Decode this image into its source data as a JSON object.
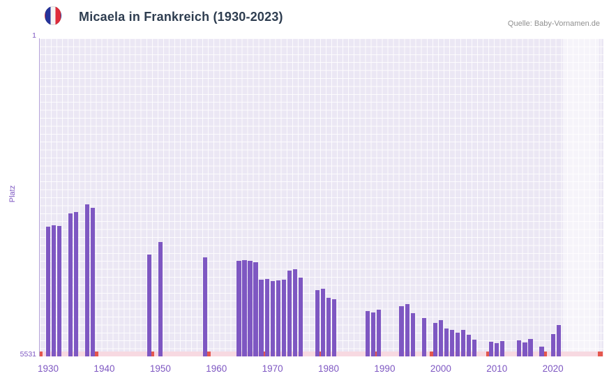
{
  "header": {
    "title": "Micaela in Frankreich (1930-2023)",
    "source": "Quelle: Baby-Vornamen.de",
    "flag_icon": "france-flag-icon"
  },
  "colors": {
    "bar": "#7e57c2",
    "plot-bg": "#ebe7f4",
    "grid": "rgba(255,255,255,0.85)",
    "axis-text": "#7e57c2",
    "title-text": "#2e3d50",
    "source-text": "#8f8f8f",
    "strip": "#f7d9e1",
    "marker": "#e4574e",
    "highlight": "rgba(255,255,255,0.55)",
    "flag-blue": "#26339b",
    "flag-white": "#f5f5f5",
    "flag-red": "#de2c3b"
  },
  "chart_data": {
    "type": "bar",
    "title": "Micaela in Frankreich (1930-2023)",
    "xlabel": "",
    "ylabel": "Platz",
    "y_axis": {
      "top_label": "1",
      "bottom_label": "5531",
      "min": 1,
      "max": 5531,
      "inverted": true
    },
    "x_domain": [
      1928.5,
      2029
    ],
    "x_ticks": [
      1930,
      1940,
      1950,
      1960,
      1970,
      1980,
      1990,
      2000,
      2010,
      2020
    ],
    "highlight_band": {
      "from": 2021.8,
      "to": 2028.2
    },
    "baseline_markers": [
      1928.5,
      1938.5,
      1948.5,
      1958.5,
      1968.5,
      1978.5,
      1988.5,
      1998.5,
      2008.5,
      2018.5,
      2028.5
    ],
    "grid": true,
    "legend": "none",
    "series": [
      {
        "name": "Platz",
        "points": [
          [
            1930,
            3270
          ],
          [
            1931,
            3245
          ],
          [
            1932,
            3260
          ],
          [
            1934,
            3040
          ],
          [
            1935,
            3020
          ],
          [
            1937,
            2890
          ],
          [
            1938,
            2950
          ],
          [
            1948,
            3755
          ],
          [
            1950,
            3545
          ],
          [
            1958,
            3810
          ],
          [
            1964,
            3875
          ],
          [
            1965,
            3860
          ],
          [
            1966,
            3865
          ],
          [
            1967,
            3895
          ],
          [
            1968,
            4200
          ],
          [
            1969,
            4185
          ],
          [
            1970,
            4220
          ],
          [
            1971,
            4210
          ],
          [
            1972,
            4195
          ],
          [
            1973,
            4040
          ],
          [
            1974,
            4020
          ],
          [
            1975,
            4165
          ],
          [
            1978,
            4380
          ],
          [
            1979,
            4350
          ],
          [
            1980,
            4515
          ],
          [
            1981,
            4540
          ],
          [
            1987,
            4740
          ],
          [
            1988,
            4770
          ],
          [
            1989,
            4720
          ],
          [
            1993,
            4655
          ],
          [
            1994,
            4620
          ],
          [
            1995,
            4780
          ],
          [
            1997,
            4860
          ],
          [
            1999,
            4945
          ],
          [
            2000,
            4900
          ],
          [
            2001,
            5040
          ],
          [
            2002,
            5075
          ],
          [
            2003,
            5120
          ],
          [
            2004,
            5065
          ],
          [
            2005,
            5155
          ],
          [
            2006,
            5240
          ],
          [
            2009,
            5280
          ],
          [
            2010,
            5300
          ],
          [
            2011,
            5265
          ],
          [
            2014,
            5255
          ],
          [
            2015,
            5290
          ],
          [
            2016,
            5230
          ],
          [
            2018,
            5365
          ],
          [
            2020,
            5140
          ],
          [
            2021,
            4985
          ]
        ]
      }
    ]
  }
}
